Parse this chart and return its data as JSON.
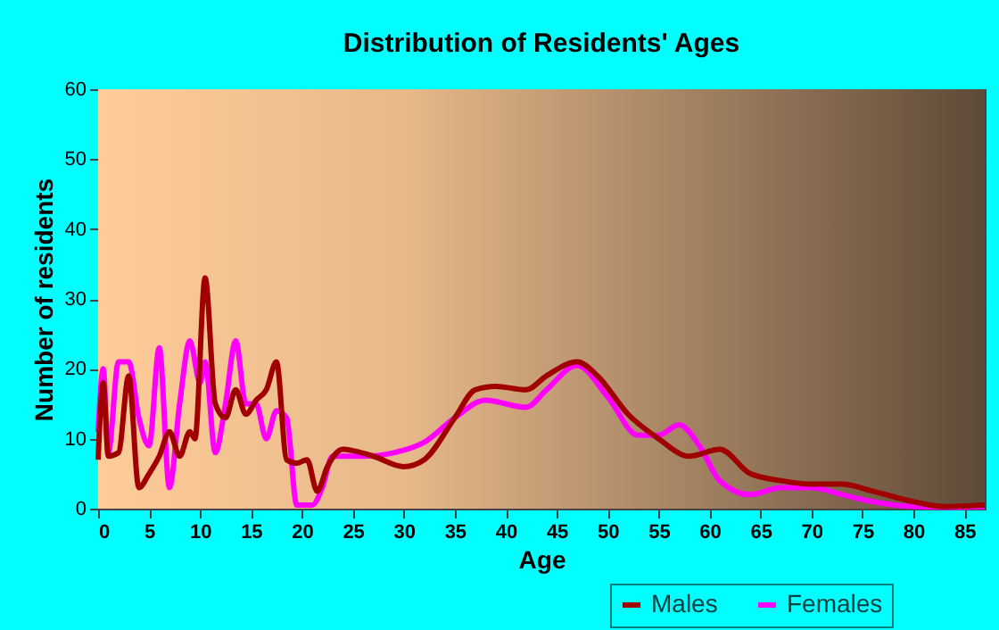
{
  "chart_data": {
    "type": "line",
    "title": "Distribution of Residents' Ages",
    "xlabel": "Age",
    "ylabel": "Number of residents",
    "xlim": [
      0,
      87
    ],
    "xticks": [
      0,
      5,
      10,
      15,
      20,
      25,
      30,
      35,
      40,
      45,
      50,
      55,
      60,
      65,
      70,
      75,
      80,
      85
    ],
    "ylim": [
      0,
      60
    ],
    "yticks": [
      0,
      10,
      20,
      30,
      40,
      50,
      60
    ],
    "grid": true,
    "legend": "bottom right",
    "line_style": "solid",
    "marker": "none",
    "series": [
      {
        "name": "Males",
        "color": "#a00000",
        "x": [
          0,
          0.5,
          1,
          2,
          3,
          4,
          5,
          6,
          7,
          8,
          9,
          9.5,
          10.5,
          11.5,
          12.5,
          13.5,
          14.5,
          15.5,
          16.5,
          17.5,
          18.5,
          19.5,
          20.5,
          21.5,
          22.5,
          24,
          27,
          30,
          32,
          35,
          37,
          39,
          42,
          44,
          47,
          49,
          52,
          55,
          58,
          61,
          64,
          67,
          70,
          73,
          76,
          80,
          83,
          87
        ],
        "values": [
          7,
          18,
          7.5,
          8,
          19,
          3,
          5,
          7.5,
          11,
          7.5,
          11,
          10,
          33,
          15,
          13,
          17,
          13.5,
          15.5,
          17,
          21,
          7,
          6.5,
          7,
          2.5,
          6,
          8.5,
          7.5,
          6,
          7,
          13,
          17,
          17.5,
          17,
          19,
          21,
          19,
          13.5,
          10,
          7.5,
          8.5,
          5,
          4,
          3.5,
          3.5,
          2.5,
          1,
          0.3,
          0.5
        ]
      },
      {
        "name": "Females",
        "color": "#ff00ff",
        "x": [
          0,
          0.5,
          1,
          2,
          3,
          4,
          5,
          6,
          7,
          8,
          9,
          10,
          10.5,
          11.5,
          12.5,
          13.5,
          14.5,
          15.5,
          16.5,
          17.5,
          18.5,
          19.5,
          21,
          22,
          23,
          26,
          29,
          32,
          35,
          38,
          42,
          44,
          47,
          50,
          53,
          55,
          57,
          59,
          61,
          64,
          67,
          70,
          73,
          76,
          80,
          84,
          87
        ],
        "values": [
          11,
          20,
          8,
          21,
          21,
          13,
          9,
          23,
          3,
          15,
          24,
          18,
          21,
          8,
          15,
          24,
          15,
          15,
          10,
          14,
          13,
          0.5,
          0.5,
          3,
          7.5,
          7.5,
          8,
          9.5,
          13,
          15.5,
          14.5,
          17,
          20.5,
          16,
          10.5,
          10.5,
          12,
          9,
          4,
          2,
          3,
          3,
          2,
          1,
          0.3,
          0.2,
          0.3
        ]
      }
    ]
  }
}
